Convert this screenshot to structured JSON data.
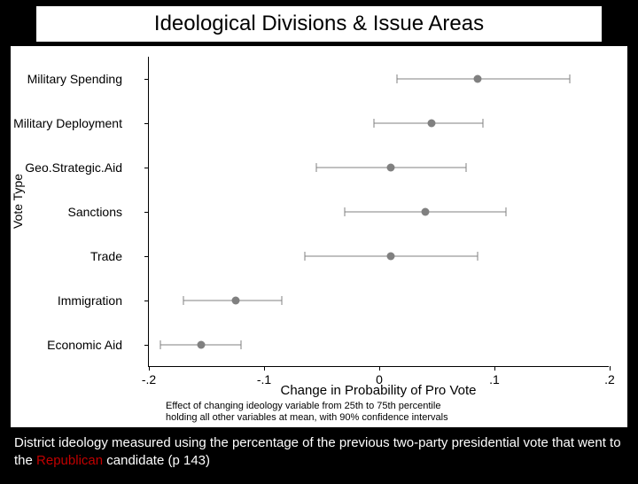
{
  "title": "Ideological Divisions & Issue Areas",
  "chart": {
    "type": "dotplot",
    "y_axis_label": "Vote Type",
    "x_axis_label": "Change in Probability of Pro Vote",
    "note_line1": "Effect of changing ideology variable from 25th to 75th percentile",
    "note_line2": "holding all other variables at mean, with 90% confidence intervals",
    "x_min": -0.2,
    "x_max": 0.2,
    "x_ticks": [
      -0.2,
      -0.1,
      0,
      0.1,
      0.2
    ],
    "x_tick_labels": [
      "-.2",
      "-.1",
      "0",
      ".1",
      ".2"
    ],
    "categories": [
      "Military Spending",
      "Military Deployment",
      "Geo.Strategic.Aid",
      "Sanctions",
      "Trade",
      "Immigration",
      "Economic Aid"
    ],
    "points": [
      {
        "est": 0.085,
        "lo": 0.015,
        "hi": 0.165
      },
      {
        "est": 0.045,
        "lo": -0.005,
        "hi": 0.09
      },
      {
        "est": 0.01,
        "lo": -0.055,
        "hi": 0.075
      },
      {
        "est": 0.04,
        "lo": -0.03,
        "hi": 0.11
      },
      {
        "est": 0.01,
        "lo": -0.065,
        "hi": 0.085
      },
      {
        "est": -0.125,
        "lo": -0.17,
        "hi": -0.085
      },
      {
        "est": -0.155,
        "lo": -0.19,
        "hi": -0.12
      }
    ],
    "point_color": "#808080",
    "err_color": "#808080",
    "label_fontsize": 14,
    "axis_label_fontsize": 15,
    "note_fontsize": 11,
    "background_color": "#ffffff",
    "border_color": "#000000"
  },
  "caption": {
    "prefix": "District ideology measured using the percentage of the previous two-party presidential vote that went to the ",
    "highlight": "Republican",
    "suffix": " candidate (p 143)",
    "highlight_color": "#c00000",
    "text_color": "#ffffff",
    "fontsize": 15
  }
}
